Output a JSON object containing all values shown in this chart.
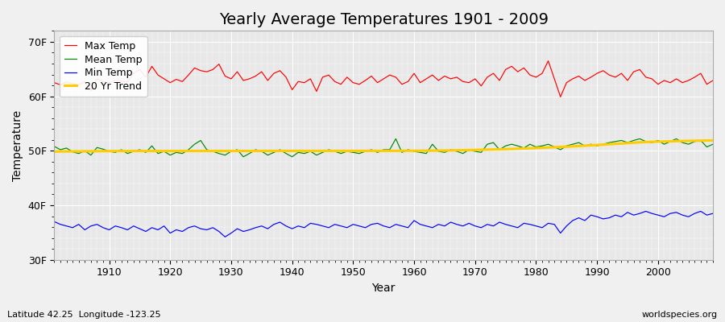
{
  "title": "Yearly Average Temperatures 1901 - 2009",
  "xlabel": "Year",
  "ylabel": "Temperature",
  "start_year": 1901,
  "end_year": 2009,
  "ylim": [
    30,
    72
  ],
  "yticks": [
    30,
    40,
    50,
    60,
    70
  ],
  "ytick_labels": [
    "30F",
    "40F",
    "50F",
    "60F",
    "70F"
  ],
  "fig_bg_color": "#f0f0f0",
  "plot_bg_color": "#e8e8e8",
  "grid_color": "#ffffff",
  "max_temp_color": "#ff0000",
  "mean_temp_color": "#008800",
  "min_temp_color": "#0000ff",
  "trend_color": "#ffcc00",
  "legend_labels": [
    "Max Temp",
    "Mean Temp",
    "Min Temp",
    "20 Yr Trend"
  ],
  "max_temp": [
    62.5,
    62.1,
    62.6,
    62.3,
    62.1,
    62.7,
    61.0,
    63.2,
    62.7,
    62.5,
    62.9,
    62.8,
    62.6,
    64.2,
    64.9,
    63.5,
    65.5,
    63.9,
    63.2,
    62.5,
    63.1,
    62.7,
    63.9,
    65.2,
    64.7,
    64.5,
    64.9,
    65.9,
    63.7,
    63.2,
    64.5,
    62.9,
    63.2,
    63.7,
    64.5,
    62.9,
    64.2,
    64.7,
    63.5,
    61.2,
    62.7,
    62.5,
    63.2,
    60.9,
    63.5,
    63.9,
    62.7,
    62.2,
    63.5,
    62.5,
    62.2,
    62.9,
    63.7,
    62.5,
    63.2,
    63.9,
    63.5,
    62.2,
    62.7,
    64.2,
    62.5,
    63.2,
    63.9,
    62.9,
    63.7,
    63.2,
    63.5,
    62.7,
    62.5,
    63.2,
    61.9,
    63.5,
    64.2,
    62.9,
    64.9,
    65.5,
    64.5,
    65.2,
    63.9,
    63.5,
    64.2,
    66.5,
    63.2,
    59.9,
    62.5,
    63.2,
    63.7,
    62.9,
    63.5,
    64.2,
    64.7,
    63.9,
    63.5,
    64.2,
    62.9,
    64.5,
    64.9,
    63.5,
    63.2,
    62.2,
    62.9,
    62.5,
    63.2,
    62.5,
    62.9,
    63.5,
    64.2,
    62.2,
    62.9
  ],
  "mean_temp": [
    50.8,
    50.2,
    50.5,
    49.8,
    49.5,
    50.0,
    49.2,
    50.6,
    50.3,
    49.9,
    49.7,
    50.2,
    49.5,
    49.9,
    50.2,
    49.7,
    50.9,
    49.5,
    49.9,
    49.2,
    49.7,
    49.5,
    50.2,
    51.2,
    51.9,
    50.2,
    49.9,
    49.5,
    49.2,
    49.9,
    50.2,
    48.9,
    49.5,
    50.2,
    49.9,
    49.2,
    49.7,
    50.2,
    49.5,
    48.9,
    49.7,
    49.5,
    49.9,
    49.2,
    49.7,
    50.2,
    49.9,
    49.5,
    49.9,
    49.7,
    49.5,
    49.9,
    50.2,
    49.7,
    50.2,
    50.2,
    52.2,
    49.7,
    50.2,
    49.9,
    49.7,
    49.5,
    51.2,
    49.9,
    49.7,
    50.2,
    49.9,
    49.5,
    50.2,
    49.9,
    49.7,
    51.2,
    51.5,
    50.2,
    50.9,
    51.2,
    50.9,
    50.5,
    51.2,
    50.7,
    50.9,
    51.2,
    50.7,
    50.2,
    50.9,
    51.2,
    51.5,
    50.9,
    51.2,
    50.9,
    51.2,
    51.5,
    51.7,
    51.9,
    51.5,
    51.9,
    52.2,
    51.7,
    51.5,
    51.9,
    51.2,
    51.7,
    52.2,
    51.5,
    51.2,
    51.7,
    51.9,
    50.7,
    51.2
  ],
  "min_temp": [
    37.0,
    36.5,
    36.2,
    35.9,
    36.5,
    35.5,
    36.2,
    36.5,
    35.9,
    35.5,
    36.2,
    35.9,
    35.5,
    36.2,
    35.7,
    35.2,
    35.9,
    35.5,
    36.2,
    34.9,
    35.5,
    35.2,
    35.9,
    36.2,
    35.7,
    35.5,
    35.9,
    35.2,
    34.2,
    34.9,
    35.7,
    35.2,
    35.5,
    35.9,
    36.2,
    35.7,
    36.5,
    36.9,
    36.2,
    35.7,
    36.2,
    35.9,
    36.7,
    36.5,
    36.2,
    35.9,
    36.5,
    36.2,
    35.9,
    36.5,
    36.2,
    35.9,
    36.5,
    36.7,
    36.2,
    35.9,
    36.5,
    36.2,
    35.9,
    37.2,
    36.5,
    36.2,
    35.9,
    36.5,
    36.2,
    36.9,
    36.5,
    36.2,
    36.7,
    36.2,
    35.9,
    36.5,
    36.2,
    36.9,
    36.5,
    36.2,
    35.9,
    36.7,
    36.5,
    36.2,
    35.9,
    36.7,
    36.5,
    34.9,
    36.2,
    37.2,
    37.7,
    37.2,
    38.2,
    37.9,
    37.5,
    37.7,
    38.2,
    37.9,
    38.7,
    38.2,
    38.5,
    38.9,
    38.5,
    38.2,
    37.9,
    38.5,
    38.7,
    38.2,
    37.9,
    38.5,
    38.9,
    38.2,
    38.5
  ],
  "trend": [
    49.85,
    49.87,
    49.88,
    49.89,
    49.9,
    49.91,
    49.92,
    49.93,
    49.94,
    49.95,
    49.95,
    49.95,
    49.95,
    49.96,
    49.96,
    49.96,
    49.96,
    49.96,
    49.96,
    49.96,
    49.96,
    49.97,
    49.97,
    49.97,
    49.97,
    49.97,
    49.97,
    49.97,
    49.97,
    49.97,
    49.97,
    49.97,
    49.97,
    49.97,
    49.98,
    49.98,
    49.98,
    49.98,
    49.98,
    49.98,
    49.98,
    49.98,
    49.98,
    49.98,
    49.98,
    49.98,
    49.98,
    49.98,
    49.98,
    49.98,
    49.98,
    49.98,
    49.99,
    49.99,
    49.99,
    49.99,
    49.99,
    50.0,
    50.0,
    50.0,
    50.01,
    50.02,
    50.03,
    50.04,
    50.05,
    50.07,
    50.09,
    50.11,
    50.13,
    50.15,
    50.18,
    50.21,
    50.24,
    50.27,
    50.3,
    50.34,
    50.38,
    50.42,
    50.46,
    50.5,
    50.55,
    50.6,
    50.65,
    50.7,
    50.76,
    50.82,
    50.88,
    50.94,
    51.0,
    51.06,
    51.13,
    51.2,
    51.27,
    51.34,
    51.41,
    51.48,
    51.55,
    51.6,
    51.65,
    51.68,
    51.71,
    51.74,
    51.77,
    51.8,
    51.82,
    51.84,
    51.86,
    51.88,
    51.9
  ],
  "footnote_left": "Latitude 42.25  Longitude -123.25",
  "footnote_right": "worldspecies.org",
  "title_fontsize": 14,
  "axis_fontsize": 10,
  "tick_fontsize": 9,
  "footnote_fontsize": 8
}
